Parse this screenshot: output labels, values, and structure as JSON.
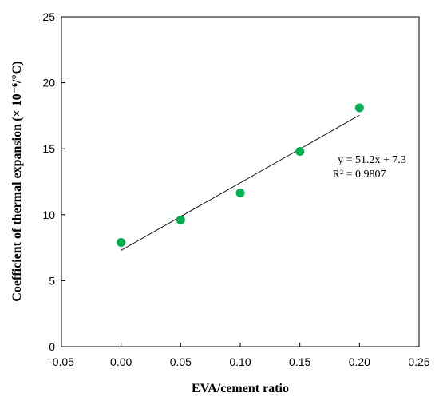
{
  "chart_data": {
    "type": "scatter",
    "xlabel": "EVA/cement ratio",
    "ylabel": "Coefficient of thermal expansion (× 10⁻⁶/°C)",
    "xlim": [
      -0.05,
      0.25
    ],
    "ylim": [
      0,
      25
    ],
    "x_ticks": [
      -0.05,
      0.0,
      0.05,
      0.1,
      0.15,
      0.2,
      0.25
    ],
    "x_tick_labels": [
      "-0.05",
      "0.00",
      "0.05",
      "0.10",
      "0.15",
      "0.20",
      "0.25"
    ],
    "y_ticks": [
      0,
      5,
      10,
      15,
      20,
      25
    ],
    "y_tick_labels": [
      "0",
      "5",
      "10",
      "15",
      "20",
      "25"
    ],
    "grid": false,
    "legend": "none",
    "series": [
      {
        "x": [
          0.0,
          0.05,
          0.1,
          0.15,
          0.2
        ],
        "y": [
          7.9,
          9.6,
          11.65,
          14.8,
          18.1
        ],
        "marker_color": "#00b050"
      }
    ],
    "trendline": {
      "slope": 51.2,
      "intercept": 7.3,
      "x_range": [
        0.0,
        0.2
      ],
      "color": "#1a1a1a"
    },
    "annotations": [
      {
        "id": "equation",
        "text": "y = 51.2x + 7.3"
      },
      {
        "id": "r2",
        "text": "R² = 0.9807"
      }
    ]
  }
}
